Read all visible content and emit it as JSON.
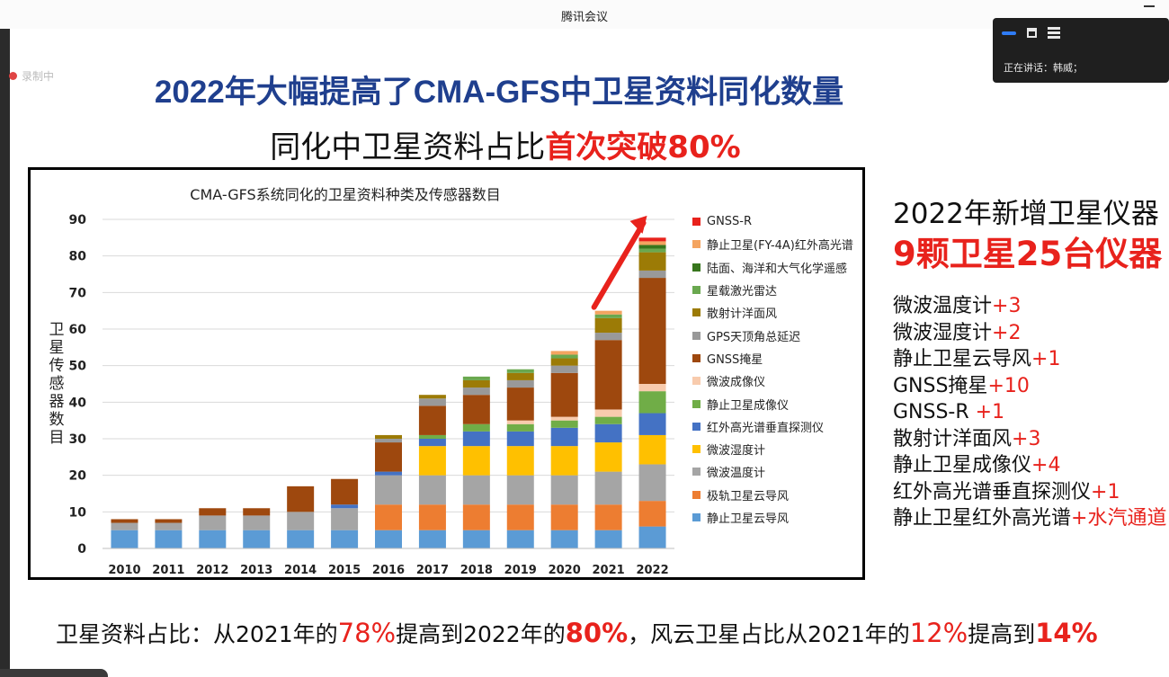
{
  "window": {
    "title": "腾讯会议"
  },
  "recording": {
    "label": "录制中"
  },
  "speaker_panel": {
    "speaking_label": "正在讲话：韩威；"
  },
  "slide": {
    "title": "2022年大幅提高了CMA-GFS中卫星资料同化数量",
    "subtitle": {
      "prefix": "同化中卫星资料占比",
      "highlight": "首次突破80%"
    },
    "right_panel": {
      "title": "2022年新增卫星仪器",
      "subtitle": "9颗卫星25台仪器",
      "items": [
        {
          "name": "微波温度计",
          "delta": "+3"
        },
        {
          "name": "微波湿度计",
          "delta": "+2"
        },
        {
          "name": "静止卫星云导风",
          "delta": "+1"
        },
        {
          "name": "GNSS掩星",
          "delta": "+10"
        },
        {
          "name": "GNSS-R ",
          "delta": "+1"
        },
        {
          "name": "散射计洋面风",
          "delta": "+3"
        },
        {
          "name": "静止卫星成像仪",
          "delta": "+4"
        },
        {
          "name": "红外高光谱垂直探测仪",
          "delta": "+1"
        },
        {
          "name": "静止卫星红外高光谱",
          "delta": "+水汽通道"
        }
      ]
    },
    "bottom_note": {
      "p1": "卫星资料占比：从2021年的",
      "v1": "78%",
      "p2": "提高到2022年的",
      "v2": "80%",
      "p3": "，风云卫星占比从2021年的",
      "v3": "12%",
      "p4": "提高到",
      "v4": "14%"
    }
  },
  "chart_data": {
    "type": "bar",
    "stacked": true,
    "title": "CMA-GFS系统同化的卫星资料种类及传感器数目",
    "ylabel": "卫星传感器数目",
    "xlabel": "",
    "ylim": [
      0,
      90
    ],
    "yticks": [
      0,
      10,
      20,
      30,
      40,
      50,
      60,
      70,
      80,
      90
    ],
    "grid": true,
    "legend_position": "right",
    "categories": [
      "2010",
      "2011",
      "2012",
      "2013",
      "2014",
      "2015",
      "2016",
      "2017",
      "2018",
      "2019",
      "2020",
      "2021",
      "2022"
    ],
    "series": [
      {
        "name": "静止卫星云导风",
        "color": "#5b9bd5",
        "values": [
          5,
          5,
          5,
          5,
          5,
          5,
          5,
          5,
          5,
          5,
          5,
          5,
          6
        ]
      },
      {
        "name": "极轨卫星云导风",
        "color": "#ed7d31",
        "values": [
          0,
          0,
          0,
          0,
          0,
          0,
          7,
          7,
          7,
          7,
          7,
          7,
          7
        ]
      },
      {
        "name": "微波温度计",
        "color": "#a5a5a5",
        "values": [
          2,
          2,
          4,
          4,
          5,
          6,
          8,
          8,
          8,
          8,
          8,
          9,
          10
        ]
      },
      {
        "name": "微波湿度计",
        "color": "#ffc000",
        "values": [
          0,
          0,
          0,
          0,
          0,
          0,
          0,
          8,
          8,
          8,
          8,
          8,
          8
        ]
      },
      {
        "name": "红外高光谱垂直探测仪",
        "color": "#4472c4",
        "values": [
          0,
          0,
          0,
          0,
          0,
          1,
          1,
          2,
          4,
          4,
          5,
          5,
          6
        ]
      },
      {
        "name": "静止卫星成像仪",
        "color": "#70ad47",
        "values": [
          0,
          0,
          0,
          0,
          0,
          0,
          0,
          1,
          2,
          2,
          2,
          2,
          6
        ]
      },
      {
        "name": "微波成像仪",
        "color": "#f8cbad",
        "values": [
          0,
          0,
          0,
          0,
          0,
          0,
          0,
          0,
          0,
          1,
          1,
          2,
          2
        ]
      },
      {
        "name": "GNSS掩星",
        "color": "#9e480e",
        "values": [
          1,
          1,
          2,
          2,
          7,
          7,
          8,
          8,
          8,
          9,
          12,
          19,
          29
        ]
      },
      {
        "name": "GPS天顶角总延迟",
        "color": "#999999",
        "values": [
          0,
          0,
          0,
          0,
          0,
          0,
          1,
          2,
          2,
          2,
          2,
          2,
          2
        ]
      },
      {
        "name": "散射计洋面风",
        "color": "#9c7b06",
        "values": [
          0,
          0,
          0,
          0,
          0,
          0,
          1,
          1,
          2,
          2,
          2,
          4,
          5
        ]
      },
      {
        "name": "星载激光雷达",
        "color": "#6aa84f",
        "values": [
          0,
          0,
          0,
          0,
          0,
          0,
          0,
          0,
          1,
          1,
          1,
          1,
          1
        ]
      },
      {
        "name": "陆面、海洋和大气化学遥感",
        "color": "#38761d",
        "values": [
          0,
          0,
          0,
          0,
          0,
          0,
          0,
          0,
          0,
          0,
          0,
          0,
          1
        ]
      },
      {
        "name": "静止卫星(FY-4A)红外高光谱",
        "color": "#f4a460",
        "values": [
          0,
          0,
          0,
          0,
          0,
          0,
          0,
          0,
          0,
          0,
          1,
          1,
          1
        ]
      },
      {
        "name": "GNSS-R",
        "color": "#e8221c",
        "values": [
          0,
          0,
          0,
          0,
          0,
          0,
          0,
          0,
          0,
          0,
          0,
          0,
          1
        ]
      }
    ],
    "annotation": "red upward arrow from 2021 to 2022"
  }
}
